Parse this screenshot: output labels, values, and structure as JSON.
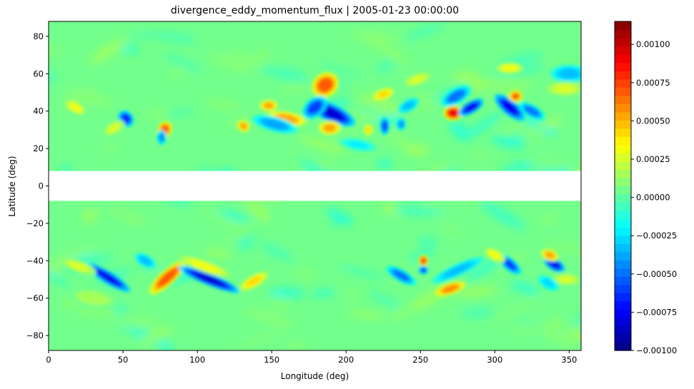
{
  "chart_data": {
    "type": "heatmap",
    "title": "divergence_eddy_momentum_flux | 2005-01-23 00:00:00",
    "xlabel": "Longitude (deg)",
    "ylabel": "Latitude (deg)",
    "xlim": [
      0,
      358
    ],
    "ylim": [
      -88,
      88
    ],
    "xticks": [
      0,
      50,
      100,
      150,
      200,
      250,
      300,
      350
    ],
    "yticks": [
      -80,
      -60,
      -40,
      -20,
      0,
      20,
      40,
      60,
      80
    ],
    "masked_band_lat": [
      -8,
      8
    ],
    "background_value": 4e-05,
    "colormap": "jet",
    "colorbar": {
      "vmin": -0.001,
      "vmax": 0.00115,
      "levels": 40,
      "ticks": [
        -0.001,
        -0.00075,
        -0.0005,
        -0.00025,
        0,
        0.00025,
        0.0005,
        0.00075,
        0.001
      ],
      "tick_labels": [
        "−0.00100",
        "−0.00075",
        "−0.00050",
        "−0.00025",
        "0.00000",
        "0.00025",
        "0.00050",
        "0.00075",
        "0.00100"
      ]
    },
    "features": [
      {
        "lon": 186,
        "lat": 54,
        "value": 0.00085,
        "dlon": 6,
        "dlat": 4,
        "angle": -35
      },
      {
        "lon": 190,
        "lat": 39,
        "value": -0.00095,
        "dlon": 11,
        "dlat": 3,
        "angle": 25
      },
      {
        "lon": 179,
        "lat": 42,
        "value": -0.0007,
        "dlon": 6,
        "dlat": 3,
        "angle": -40
      },
      {
        "lon": 160,
        "lat": 36,
        "value": 0.0006,
        "dlon": 9,
        "dlat": 2.5,
        "angle": 10
      },
      {
        "lon": 148,
        "lat": 43,
        "value": 0.0006,
        "dlon": 4,
        "dlat": 2,
        "angle": 0
      },
      {
        "lon": 152,
        "lat": 33,
        "value": -0.00045,
        "dlon": 10,
        "dlat": 2.5,
        "angle": 15
      },
      {
        "lon": 189,
        "lat": 31,
        "value": 0.0006,
        "dlon": 5,
        "dlat": 2.5,
        "angle": 0
      },
      {
        "lon": 272,
        "lat": 39,
        "value": 0.0011,
        "dlon": 4,
        "dlat": 2.5,
        "angle": 0
      },
      {
        "lon": 284,
        "lat": 42,
        "value": -0.0009,
        "dlon": 6,
        "dlat": 2,
        "angle": -30
      },
      {
        "lon": 274,
        "lat": 48,
        "value": -0.0006,
        "dlon": 7,
        "dlat": 2.5,
        "angle": -30
      },
      {
        "lon": 310,
        "lat": 42,
        "value": -0.0009,
        "dlon": 8,
        "dlat": 2.5,
        "angle": 40
      },
      {
        "lon": 314,
        "lat": 48,
        "value": 0.0008,
        "dlon": 3,
        "dlat": 2,
        "angle": 0
      },
      {
        "lon": 325,
        "lat": 40,
        "value": -0.0006,
        "dlon": 6,
        "dlat": 2,
        "angle": 30
      },
      {
        "lon": 350,
        "lat": 60,
        "value": -0.0004,
        "dlon": 8,
        "dlat": 3,
        "angle": 0
      },
      {
        "lon": 347,
        "lat": 52,
        "value": 0.0003,
        "dlon": 8,
        "dlat": 2.5,
        "angle": 0
      },
      {
        "lon": 310,
        "lat": 63,
        "value": 0.0004,
        "dlon": 6,
        "dlat": 2,
        "angle": 0
      },
      {
        "lon": 78,
        "lat": 30,
        "value": 0.00085,
        "dlon": 3,
        "dlat": 3,
        "angle": 30
      },
      {
        "lon": 76,
        "lat": 26,
        "value": -0.0005,
        "dlon": 2,
        "dlat": 2.5,
        "angle": 0
      },
      {
        "lon": 52,
        "lat": 36,
        "value": -0.0008,
        "dlon": 3,
        "dlat": 3,
        "angle": -40
      },
      {
        "lon": 44,
        "lat": 31,
        "value": 0.0003,
        "dlon": 5,
        "dlat": 2,
        "angle": -30
      },
      {
        "lon": 18,
        "lat": 42,
        "value": 0.0004,
        "dlon": 5,
        "dlat": 2,
        "angle": 30
      },
      {
        "lon": 131,
        "lat": 32,
        "value": 0.0006,
        "dlon": 3,
        "dlat": 2,
        "angle": 30
      },
      {
        "lon": 226,
        "lat": 32,
        "value": -0.0007,
        "dlon": 2,
        "dlat": 3,
        "angle": 0
      },
      {
        "lon": 215,
        "lat": 30,
        "value": 0.0005,
        "dlon": 2,
        "dlat": 2,
        "angle": 0
      },
      {
        "lon": 237,
        "lat": 33,
        "value": -0.0005,
        "dlon": 2,
        "dlat": 2,
        "angle": 0
      },
      {
        "lon": 242,
        "lat": 43,
        "value": -0.0004,
        "dlon": 5,
        "dlat": 2,
        "angle": -30
      },
      {
        "lon": 225,
        "lat": 49,
        "value": 0.0005,
        "dlon": 5,
        "dlat": 2,
        "angle": -20
      },
      {
        "lon": 248,
        "lat": 57,
        "value": 0.0003,
        "dlon": 6,
        "dlat": 2,
        "angle": -20
      },
      {
        "lon": 208,
        "lat": 22,
        "value": -0.00025,
        "dlon": 8,
        "dlat": 2,
        "angle": 10
      },
      {
        "lon": 40,
        "lat": -49,
        "value": -0.0009,
        "dlon": 11,
        "dlat": 2,
        "angle": 32
      },
      {
        "lon": 80,
        "lat": -49,
        "value": 0.00085,
        "dlon": 10,
        "dlat": 2.5,
        "angle": -42
      },
      {
        "lon": 108,
        "lat": -50,
        "value": -0.00095,
        "dlon": 14,
        "dlat": 2,
        "angle": 22
      },
      {
        "lon": 105,
        "lat": -43,
        "value": 0.0004,
        "dlon": 12,
        "dlat": 2,
        "angle": 20
      },
      {
        "lon": 138,
        "lat": -51,
        "value": 0.0005,
        "dlon": 7,
        "dlat": 2,
        "angle": -30
      },
      {
        "lon": 65,
        "lat": -40,
        "value": -0.0004,
        "dlon": 5,
        "dlat": 2,
        "angle": 30
      },
      {
        "lon": 252,
        "lat": -40,
        "value": 0.0009,
        "dlon": 2,
        "dlat": 2,
        "angle": 0
      },
      {
        "lon": 252,
        "lat": -45,
        "value": -0.0007,
        "dlon": 2,
        "dlat": 1.5,
        "angle": 0
      },
      {
        "lon": 270,
        "lat": -55,
        "value": 0.0007,
        "dlon": 7,
        "dlat": 2,
        "angle": -18
      },
      {
        "lon": 237,
        "lat": -48,
        "value": -0.0006,
        "dlon": 7,
        "dlat": 2,
        "angle": 30
      },
      {
        "lon": 275,
        "lat": -45,
        "value": -0.0004,
        "dlon": 12,
        "dlat": 2,
        "angle": -25
      },
      {
        "lon": 340,
        "lat": -42,
        "value": -0.0009,
        "dlon": 5,
        "dlat": 2,
        "angle": 30
      },
      {
        "lon": 337,
        "lat": -37,
        "value": 0.0006,
        "dlon": 4,
        "dlat": 2,
        "angle": 20
      },
      {
        "lon": 310,
        "lat": -42,
        "value": -0.0007,
        "dlon": 6,
        "dlat": 2,
        "angle": 40
      },
      {
        "lon": 300,
        "lat": -37,
        "value": 0.0004,
        "dlon": 5,
        "dlat": 2,
        "angle": 30
      },
      {
        "lon": 348,
        "lat": -50,
        "value": 0.0003,
        "dlon": 6,
        "dlat": 2,
        "angle": 0
      },
      {
        "lon": 336,
        "lat": -52,
        "value": -0.0003,
        "dlon": 5,
        "dlat": 2,
        "angle": 30
      },
      {
        "lon": 20,
        "lat": -43,
        "value": 0.0003,
        "dlon": 8,
        "dlat": 2,
        "angle": 20
      },
      {
        "lon": 30,
        "lat": -60,
        "value": 0.0002,
        "dlon": 10,
        "dlat": 3,
        "angle": 10
      }
    ]
  }
}
